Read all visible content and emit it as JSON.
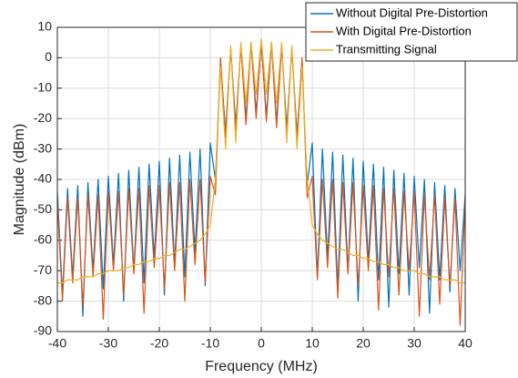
{
  "chart_data": {
    "type": "line",
    "xlabel": "Frequency (MHz)",
    "ylabel": "Magnitude (dBm)",
    "x": [
      -40,
      -39,
      -38,
      -37,
      -36,
      -35,
      -34,
      -33,
      -32,
      -31,
      -30,
      -29,
      -28,
      -27,
      -26,
      -25,
      -24,
      -23,
      -22,
      -21,
      -20,
      -19,
      -18,
      -17,
      -16,
      -15,
      -14,
      -13,
      -12,
      -11,
      -10,
      -9,
      -8,
      -7,
      -6,
      -5,
      -4,
      -3,
      -2,
      -1,
      0,
      1,
      2,
      3,
      4,
      5,
      6,
      7,
      8,
      9,
      10,
      11,
      12,
      13,
      14,
      15,
      16,
      17,
      18,
      19,
      20,
      21,
      22,
      23,
      24,
      25,
      26,
      27,
      28,
      29,
      30,
      31,
      32,
      33,
      34,
      35,
      36,
      37,
      38,
      39,
      40
    ],
    "series": [
      {
        "name": "Without Digital Pre-Distortion",
        "color": "#0072BD",
        "values": [
          -44,
          -78,
          -43,
          -72,
          -42,
          -85,
          -41,
          -70,
          -40,
          -76,
          -39,
          -68,
          -38,
          -80,
          -37,
          -70,
          -36,
          -74,
          -35,
          -66,
          -34,
          -78,
          -33,
          -68,
          -32,
          -72,
          -31,
          -64,
          -30,
          -75,
          -28,
          -40,
          -2,
          -24,
          3,
          -22,
          4,
          -20,
          5,
          -18,
          5,
          -19,
          5,
          -21,
          4,
          -23,
          3,
          -25,
          -2,
          -42,
          -28,
          -72,
          -30,
          -66,
          -31,
          -76,
          -32,
          -70,
          -33,
          -80,
          -34,
          -67,
          -35,
          -73,
          -36,
          -82,
          -37,
          -71,
          -38,
          -78,
          -39,
          -69,
          -40,
          -84,
          -41,
          -73,
          -42,
          -77,
          -43,
          -70,
          -45
        ]
      },
      {
        "name": "With Digital Pre-Distortion",
        "color": "#D95319",
        "values": [
          -47,
          -80,
          -46,
          -74,
          -46,
          -82,
          -45,
          -72,
          -45,
          -86,
          -44,
          -70,
          -44,
          -78,
          -43,
          -71,
          -43,
          -84,
          -42,
          -69,
          -42,
          -76,
          -41,
          -70,
          -41,
          -80,
          -40,
          -68,
          -40,
          -74,
          -39,
          -45,
          0,
          -26,
          3,
          -24,
          4,
          -22,
          5,
          -20,
          6,
          -21,
          5,
          -23,
          4,
          -25,
          3,
          -27,
          0,
          -46,
          -39,
          -73,
          -40,
          -69,
          -40,
          -79,
          -41,
          -71,
          -41,
          -75,
          -42,
          -70,
          -42,
          -83,
          -43,
          -72,
          -43,
          -78,
          -44,
          -70,
          -44,
          -85,
          -45,
          -73,
          -45,
          -81,
          -46,
          -75,
          -46,
          -88,
          -47
        ]
      },
      {
        "name": "Transmitting Signal",
        "color": "#EDB120",
        "values": [
          -74,
          -74,
          -73,
          -73,
          -73,
          -72,
          -72,
          -72,
          -71,
          -71,
          -70,
          -70,
          -70,
          -69,
          -69,
          -68,
          -68,
          -67,
          -67,
          -66,
          -66,
          -65,
          -65,
          -64,
          -63,
          -63,
          -62,
          -61,
          -60,
          -58,
          -55,
          -40,
          -3,
          -30,
          4,
          -28,
          5,
          -15,
          5,
          -12,
          6,
          -12,
          5,
          -15,
          5,
          -28,
          4,
          -30,
          -3,
          -40,
          -55,
          -58,
          -60,
          -61,
          -62,
          -63,
          -63,
          -64,
          -65,
          -65,
          -66,
          -66,
          -67,
          -67,
          -68,
          -68,
          -69,
          -69,
          -70,
          -70,
          -70,
          -71,
          -71,
          -72,
          -72,
          -72,
          -73,
          -73,
          -73,
          -74,
          -74
        ]
      }
    ],
    "xlim": [
      -40,
      40
    ],
    "xticks": [
      -40,
      -30,
      -20,
      -10,
      0,
      10,
      20,
      30,
      40
    ],
    "ylim": [
      -90,
      10
    ],
    "yticks": [
      -90,
      -80,
      -70,
      -60,
      -50,
      -40,
      -30,
      -20,
      -10,
      0,
      10
    ],
    "grid": true,
    "legend": "northeast"
  }
}
